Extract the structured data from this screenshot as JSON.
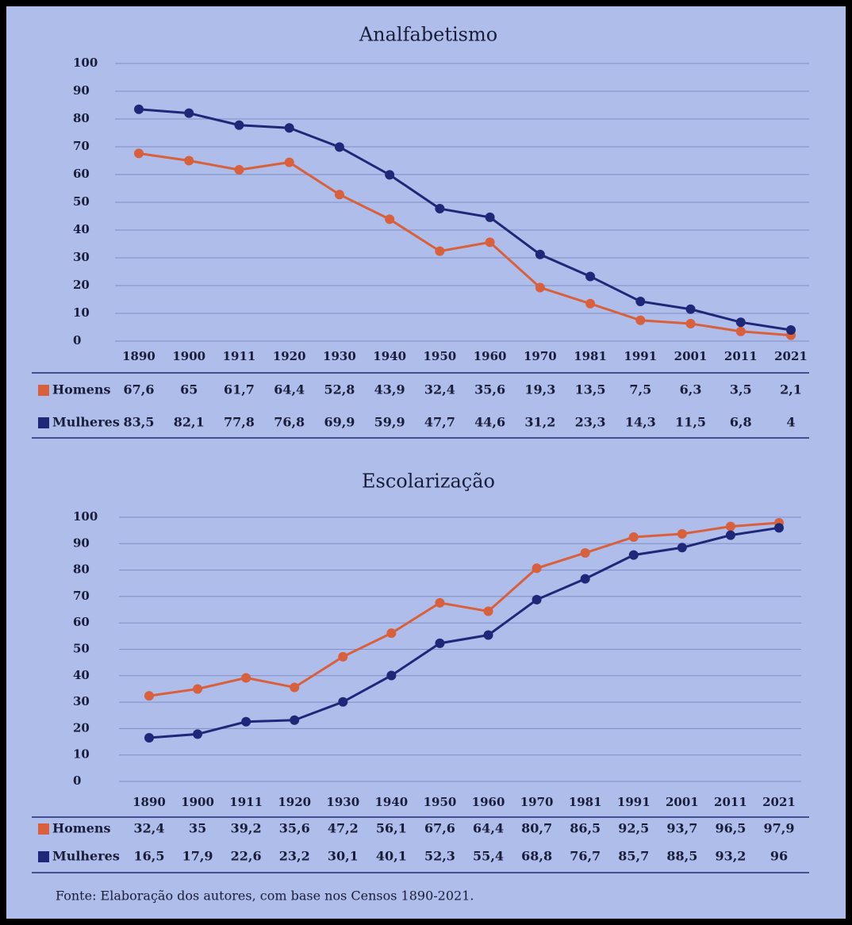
{
  "chart_data": [
    {
      "type": "line",
      "title": "Analfabetismo",
      "categories": [
        "1890",
        "1900",
        "1911",
        "1920",
        "1930",
        "1940",
        "1950",
        "1960",
        "1970",
        "1981",
        "1991",
        "2001",
        "2011",
        "2021"
      ],
      "series": [
        {
          "name": "Homens",
          "color": "#d8603c",
          "values": [
            67.6,
            65,
            61.7,
            64.4,
            52.8,
            43.9,
            32.4,
            35.6,
            19.3,
            13.5,
            7.5,
            6.3,
            3.5,
            2.1
          ],
          "value_labels": [
            "67,6",
            "65",
            "61,7",
            "64,4",
            "52,8",
            "43,9",
            "32,4",
            "35,6",
            "19,3",
            "13,5",
            "7,5",
            "6,3",
            "3,5",
            "2,1"
          ]
        },
        {
          "name": "Mulheres",
          "color": "#1f2878",
          "values": [
            83.5,
            82.1,
            77.8,
            76.8,
            69.9,
            59.9,
            47.7,
            44.6,
            31.2,
            23.3,
            14.3,
            11.5,
            6.8,
            4
          ],
          "value_labels": [
            "83,5",
            "82,1",
            "77,8",
            "76,8",
            "69,9",
            "59,9",
            "47,7",
            "44,6",
            "31,2",
            "23,3",
            "14,3",
            "11,5",
            "6,8",
            "4"
          ]
        }
      ],
      "ylim": [
        0,
        100
      ],
      "yticks": [
        0,
        10,
        20,
        30,
        40,
        50,
        60,
        70,
        80,
        90,
        100
      ],
      "grid": true
    },
    {
      "type": "line",
      "title": "Escolarização",
      "categories": [
        "1890",
        "1900",
        "1911",
        "1920",
        "1930",
        "1940",
        "1950",
        "1960",
        "1970",
        "1981",
        "1991",
        "2001",
        "2011",
        "2021"
      ],
      "series": [
        {
          "name": "Homens",
          "color": "#d8603c",
          "values": [
            32.4,
            35,
            39.2,
            35.6,
            47.2,
            56.1,
            67.6,
            64.4,
            80.7,
            86.5,
            92.5,
            93.7,
            96.5,
            97.9
          ],
          "value_labels": [
            "32,4",
            "35",
            "39,2",
            "35,6",
            "47,2",
            "56,1",
            "67,6",
            "64,4",
            "80,7",
            "86,5",
            "92,5",
            "93,7",
            "96,5",
            "97,9"
          ]
        },
        {
          "name": "Mulheres",
          "color": "#1f2878",
          "values": [
            16.5,
            17.9,
            22.6,
            23.2,
            30.1,
            40.1,
            52.3,
            55.4,
            68.8,
            76.7,
            85.7,
            88.5,
            93.2,
            96
          ],
          "value_labels": [
            "16,5",
            "17,9",
            "22,6",
            "23,2",
            "30,1",
            "40,1",
            "52,3",
            "55,4",
            "68,8",
            "76,7",
            "85,7",
            "88,5",
            "93,2",
            "96"
          ]
        }
      ],
      "ylim": [
        0,
        100
      ],
      "yticks": [
        0,
        10,
        20,
        30,
        40,
        50,
        60,
        70,
        80,
        90,
        100
      ],
      "grid": true
    }
  ],
  "source": "Fonte: Elaboração dos autores, com base nos Censos 1890-2021."
}
